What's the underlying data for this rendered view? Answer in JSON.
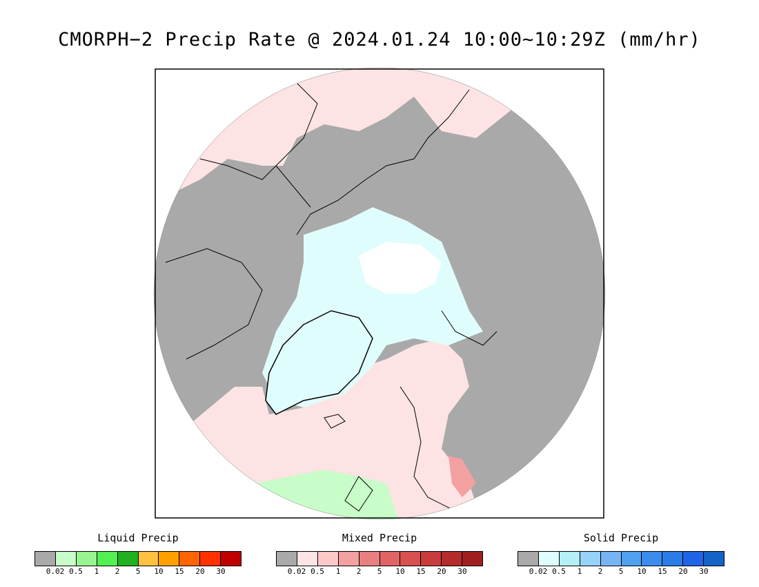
{
  "title": "CMORPH−2 Precip Rate @ 2024.01.24 10:00~10:29Z (mm/hr)",
  "map": {
    "projection": "north-polar-stereographic",
    "colors": {
      "no_precip": "#a9a9a9",
      "mixed_light": "#fde3e3",
      "solid_light": "#e0fdfd",
      "liquid_light": "#c8fcc8",
      "missing": "#ffffff",
      "coastline": "#000000"
    }
  },
  "legends": [
    {
      "title": "Liquid Precip",
      "ticks": [
        "0.02",
        "0.5",
        "1",
        "2",
        "5",
        "10",
        "15",
        "20",
        "30"
      ],
      "colors": [
        "#a9a9a9",
        "#c8fcc8",
        "#98f490",
        "#52f052",
        "#20b020",
        "#ffc040",
        "#ffa000",
        "#ff6400",
        "#ff3200",
        "#c00000"
      ]
    },
    {
      "title": "Mixed Precip",
      "ticks": [
        "0.02",
        "0.5",
        "1",
        "2",
        "5",
        "10",
        "15",
        "20",
        "30"
      ],
      "colors": [
        "#a9a9a9",
        "#fde3e3",
        "#fdc8c8",
        "#f2a0a0",
        "#e88080",
        "#e06464",
        "#d85050",
        "#c83c3c",
        "#b42c2c",
        "#a02020"
      ]
    },
    {
      "title": "Solid Precip",
      "ticks": [
        "0.02",
        "0.5",
        "1",
        "2",
        "5",
        "10",
        "15",
        "20",
        "30"
      ],
      "colors": [
        "#a9a9a9",
        "#e0fdfd",
        "#b4eef6",
        "#96d2fa",
        "#78b4f4",
        "#50a0f0",
        "#3c8cee",
        "#2c7ce8",
        "#2064e8",
        "#1464c8"
      ]
    }
  ]
}
